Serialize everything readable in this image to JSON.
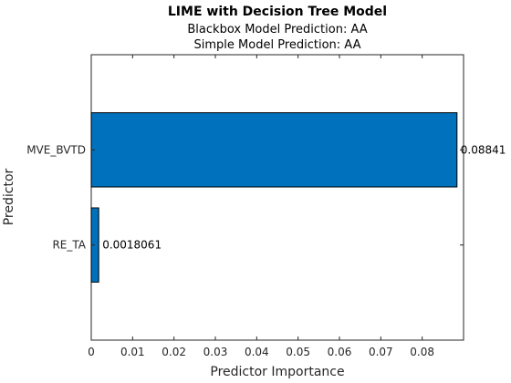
{
  "chart_data": {
    "type": "bar",
    "orientation": "horizontal",
    "title": "LIME with Decision Tree Model",
    "subtitle_lines": [
      "Blackbox Model Prediction: AA",
      "Simple Model Prediction: AA"
    ],
    "xlabel": "Predictor Importance",
    "ylabel": "Predictor",
    "categories": [
      "RE_TA",
      "MVE_BVTD"
    ],
    "values": [
      0.0018061,
      0.08841
    ],
    "value_labels": [
      "0.0018061",
      "0.08841"
    ],
    "xlim": [
      0,
      0.09
    ],
    "xticks": [
      0,
      0.01,
      0.02,
      0.03,
      0.04,
      0.05,
      0.06,
      0.07,
      0.08
    ],
    "xtick_labels": [
      "0",
      "0.01",
      "0.02",
      "0.03",
      "0.04",
      "0.05",
      "0.06",
      "0.07",
      "0.08"
    ],
    "bar_color": "#0072BD",
    "grid": false,
    "legend": "none"
  }
}
